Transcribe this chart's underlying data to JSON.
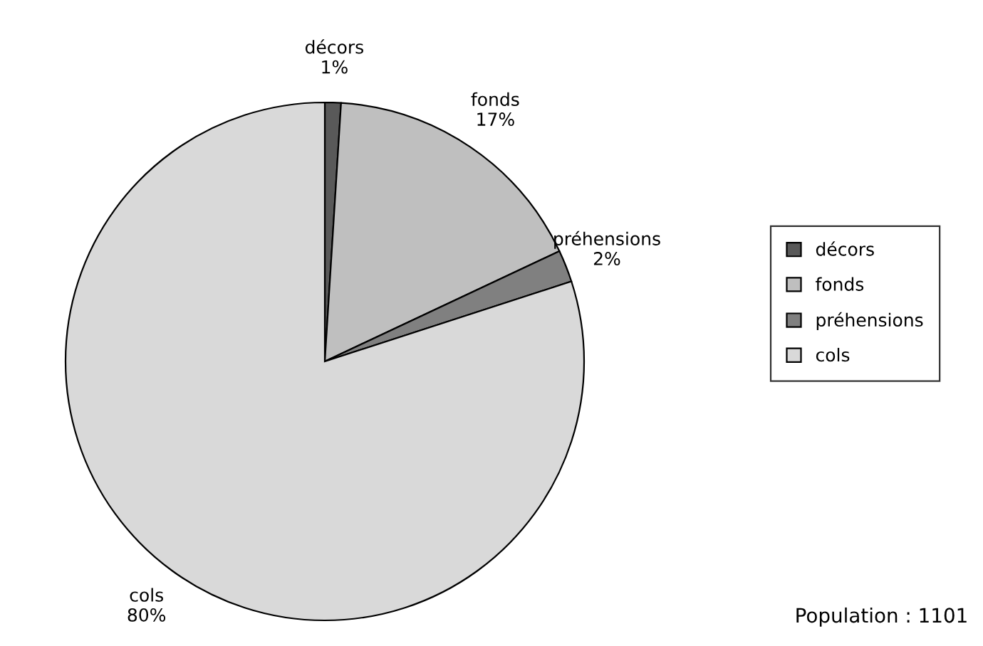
{
  "chart_data": {
    "type": "pie",
    "categories": [
      "décors",
      "fonds",
      "préhensions",
      "cols"
    ],
    "values": [
      1,
      17,
      2,
      80
    ],
    "value_labels": [
      "1%",
      "17%",
      "2%",
      "80%"
    ],
    "colors": [
      "#595959",
      "#bfbfbf",
      "#808080",
      "#d9d9d9"
    ],
    "legend": "right",
    "annotations": [
      "Population : 1101"
    ]
  }
}
